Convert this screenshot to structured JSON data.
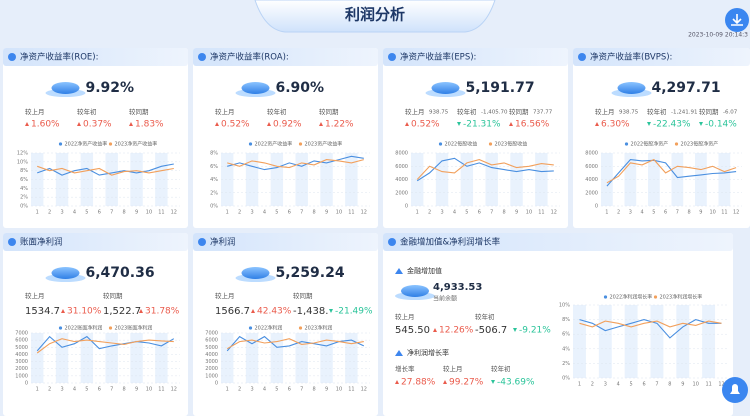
{
  "header": {
    "title": "利润分析",
    "date": "2023-10-09 20:14:3"
  },
  "panels": [
    {
      "title": "净资产收益率(ROE):",
      "value": "9.92%",
      "comparisons": [
        {
          "label": "较上月",
          "change": "1.60%"
        },
        {
          "label": "较年初",
          "change": "0.37%"
        },
        {
          "label": "较同期",
          "change": "1.83%"
        }
      ],
      "chart": {
        "type": "line",
        "categories": [
          1,
          2,
          3,
          4,
          5,
          6,
          7,
          8,
          9,
          10,
          11,
          12
        ],
        "series": [
          {
            "name": "2022净资产收益率",
            "color": "#4a8fe0",
            "values": [
              7.5,
              8.5,
              7,
              8,
              8.5,
              7,
              7.5,
              8,
              7.5,
              8,
              9,
              9.5
            ]
          },
          {
            "name": "2023净资产收益率",
            "color": "#f2a05c",
            "values": [
              9,
              8,
              8.5,
              7.5,
              8,
              8.5,
              7,
              7.8,
              8,
              7.5,
              8,
              8.5
            ]
          }
        ],
        "ylim": [
          0,
          12
        ],
        "yticks": [
          {
            "value": 0,
            "label": "0%"
          },
          {
            "value": 2,
            "label": "2%"
          },
          {
            "value": 4,
            "label": "4%"
          },
          {
            "value": 6,
            "label": "6%"
          },
          {
            "value": 8,
            "label": "8%"
          },
          {
            "value": 10,
            "label": "10%"
          },
          {
            "value": 12,
            "label": "12%"
          }
        ]
      }
    },
    {
      "title": "净资产收益率(ROA):",
      "value": "6.90%",
      "comparisons": [
        {
          "label": "较上月",
          "change": "0.52%"
        },
        {
          "label": "较年初",
          "change": "0.92%"
        },
        {
          "label": "较同期",
          "change": "1.22%"
        }
      ],
      "chart": {
        "type": "line",
        "categories": [
          1,
          2,
          3,
          4,
          5,
          6,
          7,
          8,
          9,
          10,
          11,
          12
        ],
        "series": [
          {
            "name": "2022资产收益率",
            "color": "#4a8fe0",
            "values": [
              6,
              6.5,
              6,
              5.5,
              5.8,
              6.5,
              6,
              6.8,
              6.5,
              7,
              7.5,
              7.2
            ]
          },
          {
            "name": "2023资产收益率",
            "color": "#f2a05c",
            "values": [
              6.5,
              6,
              6.8,
              6.5,
              6,
              5.8,
              6.5,
              6.2,
              7,
              6.8,
              6.5,
              7
            ]
          }
        ],
        "ylim": [
          0,
          8
        ],
        "yticks": [
          {
            "value": 0,
            "label": "0%"
          },
          {
            "value": 2,
            "label": "2%"
          },
          {
            "value": 4,
            "label": "4%"
          },
          {
            "value": 6,
            "label": "6%"
          },
          {
            "value": 8,
            "label": "8%"
          }
        ]
      }
    },
    {
      "title": "净资产收益率(EPS):",
      "value": "5,191.77",
      "comparisons": [
        {
          "label": "较上月",
          "amount": "938.75",
          "change": "0.52%"
        },
        {
          "label": "较年初",
          "amount": "-1,405.70",
          "change": "-21.31%"
        },
        {
          "label": "较同期",
          "amount": "737.77",
          "change": "16.56%"
        }
      ],
      "chart": {
        "type": "line",
        "categories": [
          1,
          2,
          3,
          4,
          5,
          6,
          7,
          8,
          9,
          10,
          11,
          12
        ],
        "series": [
          {
            "name": "2022每股收益",
            "color": "#4a8fe0",
            "values": [
              3800,
              5000,
              6800,
              7200,
              6000,
              6500,
              5800,
              5500,
              5200,
              5500,
              5200,
              5300
            ]
          },
          {
            "name": "2023每股收益",
            "color": "#f2a05c",
            "values": [
              4000,
              6000,
              5200,
              5000,
              6500,
              7000,
              6200,
              6500,
              5800,
              6000,
              6400,
              6200
            ]
          }
        ],
        "ylim": [
          0,
          8000
        ],
        "yticks": [
          0,
          2000,
          4000,
          6000,
          8000
        ]
      }
    },
    {
      "title": "净资产收益率(BVPS):",
      "value": "4,297.71",
      "comparisons": [
        {
          "label": "较上月",
          "amount": "938.75",
          "change": "6.30%"
        },
        {
          "label": "较年初",
          "amount": "-1,241.91",
          "change": "-22.43%"
        },
        {
          "label": "较同期",
          "amount": "-6.07",
          "change": "-0.14%"
        }
      ],
      "chart": {
        "type": "line",
        "categories": [
          1,
          2,
          3,
          4,
          5,
          6,
          7,
          8,
          9,
          10,
          11,
          12
        ],
        "series": [
          {
            "name": "2022每股净资产",
            "color": "#4a8fe0",
            "values": [
              3000,
              5000,
              7000,
              6800,
              6900,
              6500,
              4300,
              4500,
              4700,
              4900,
              5000,
              5200
            ]
          },
          {
            "name": "2023每股净资产",
            "color": "#f2a05c",
            "values": [
              3500,
              4500,
              6500,
              6200,
              7000,
              5000,
              6000,
              5800,
              5500,
              6000,
              5200,
              5800
            ]
          }
        ],
        "ylim": [
          0,
          8000
        ],
        "yticks": [
          0,
          2000,
          4000,
          6000,
          8000
        ]
      }
    },
    {
      "title": "账面净利润",
      "value": "6,470.36",
      "comparisons": [
        {
          "label": "较上月",
          "amount": "1534.7",
          "change": "31.10%"
        },
        {
          "label": "较同期",
          "amount": "1,522.7",
          "change": "31.78%"
        }
      ],
      "chart": {
        "type": "line",
        "categories": [
          1,
          2,
          3,
          4,
          5,
          6,
          7,
          8,
          9,
          10,
          11,
          12
        ],
        "series": [
          {
            "name": "2022账面净利润",
            "color": "#4a8fe0",
            "values": [
              4500,
              6500,
              5000,
              5500,
              6500,
              4800,
              5200,
              5500,
              5800,
              5600,
              5200,
              6200
            ]
          },
          {
            "name": "2023账面净利润",
            "color": "#f2a05c",
            "values": [
              4200,
              5500,
              6200,
              5800,
              6000,
              5800,
              5600,
              5400,
              5800,
              6000,
              5900,
              5800
            ]
          }
        ],
        "ylim": [
          0,
          7000
        ],
        "yticks": [
          0,
          1000,
          2000,
          3000,
          4000,
          5000,
          6000,
          7000
        ]
      }
    },
    {
      "title": "净利润",
      "value": "5,259.24",
      "comparisons": [
        {
          "label": "较上月",
          "amount": "1566.7",
          "change": "42.43%"
        },
        {
          "label": "较同期",
          "amount": "-1,438.",
          "change": "-21.49%"
        }
      ],
      "chart": {
        "type": "line",
        "categories": [
          1,
          2,
          3,
          4,
          5,
          6,
          7,
          8,
          9,
          10,
          11,
          12
        ],
        "series": [
          {
            "name": "2022净利润",
            "color": "#4a8fe0",
            "values": [
              4500,
              6500,
              5500,
              6500,
              5000,
              5200,
              5800,
              5500,
              5200,
              5800,
              6000,
              5200
            ]
          },
          {
            "name": "2023净利润",
            "color": "#f2a05c",
            "values": [
              4800,
              5800,
              6000,
              5600,
              5800,
              6200,
              5400,
              5600,
              6000,
              5800,
              5500,
              5800
            ]
          }
        ],
        "ylim": [
          0,
          7000
        ],
        "yticks": [
          0,
          1000,
          2000,
          3000,
          4000,
          5000,
          6000,
          7000
        ]
      }
    },
    {
      "title": "金融增加值&净利润增长率",
      "sections": [
        {
          "title": "金融增加值",
          "value": "4,933.53",
          "caption": "当前余额",
          "comparisons": [
            {
              "label": "较上月",
              "amount": "545.50",
              "change": "12.26%"
            },
            {
              "label": "较年初",
              "amount": "-506.7",
              "change": "-9.21%"
            }
          ]
        },
        {
          "title": "净利润增长率",
          "comparisons": [
            {
              "label": "增长率",
              "change": "27.88%"
            },
            {
              "label": "较上月",
              "change": "99.27%"
            },
            {
              "label": "较年初",
              "change": "-43.69%"
            }
          ]
        }
      ],
      "chart": {
        "type": "line",
        "categories": [
          1,
          2,
          3,
          4,
          5,
          6,
          7,
          8,
          9,
          10,
          11,
          12
        ],
        "series": [
          {
            "name": "2022净利润增长率",
            "color": "#4a8fe0",
            "values": [
              8,
              7.5,
              6.5,
              7,
              7.5,
              8,
              7.5,
              5.5,
              7,
              8,
              7.5,
              7.5
            ]
          },
          {
            "name": "2023净利润增长率",
            "color": "#f2a05c",
            "values": [
              7.5,
              7,
              7.8,
              7.5,
              7,
              7.5,
              7.8,
              7,
              7.5,
              7.2,
              7.8,
              7.5
            ]
          }
        ],
        "ylim": [
          0,
          10
        ],
        "yticks": [
          {
            "value": 0,
            "label": "0%"
          },
          {
            "value": 2,
            "label": "2%"
          },
          {
            "value": 4,
            "label": "4%"
          },
          {
            "value": 6,
            "label": "6%"
          },
          {
            "value": 8,
            "label": "8%"
          },
          {
            "value": 10,
            "label": "10%"
          }
        ]
      }
    }
  ]
}
